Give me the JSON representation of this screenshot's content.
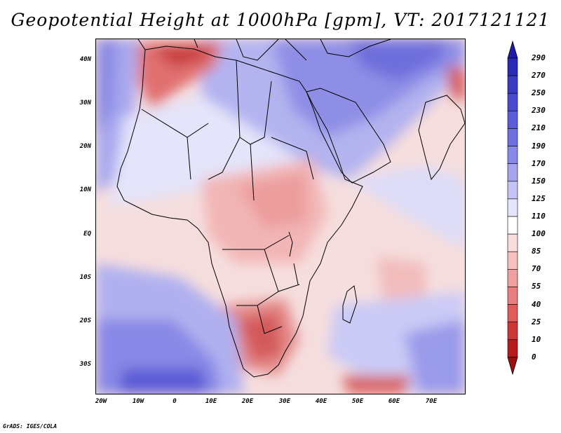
{
  "title": "Geopotential Height at 1000hPa [gpm], VT: 2017121121",
  "credit": "GrADS: IGES/COLA",
  "map": {
    "region": "Africa, Arabia and Indian Ocean",
    "lat_labels": [
      "40N",
      "30N",
      "20N",
      "10N",
      "EQ",
      "10S",
      "20S",
      "30S"
    ],
    "lon_labels": [
      "20W",
      "10W",
      "0",
      "10E",
      "20E",
      "30E",
      "40E",
      "50E",
      "60E",
      "70E"
    ]
  },
  "colorbar": {
    "labels": [
      "290",
      "270",
      "250",
      "230",
      "210",
      "190",
      "170",
      "150",
      "125",
      "110",
      "100",
      "85",
      "70",
      "55",
      "40",
      "25",
      "10",
      "0"
    ],
    "colors": [
      "#1c1ca8",
      "#2a2ab5",
      "#3a3ac2",
      "#4a4ace",
      "#5c5cd8",
      "#7070e0",
      "#8888e8",
      "#a4a4ef",
      "#c4c4f5",
      "#e4e4fa",
      "#ffffff",
      "#fbdcdc",
      "#f6c0c0",
      "#f0a0a0",
      "#e87e7e",
      "#de5c5c",
      "#cc3838",
      "#b41c1c",
      "#9c1010"
    ]
  }
}
